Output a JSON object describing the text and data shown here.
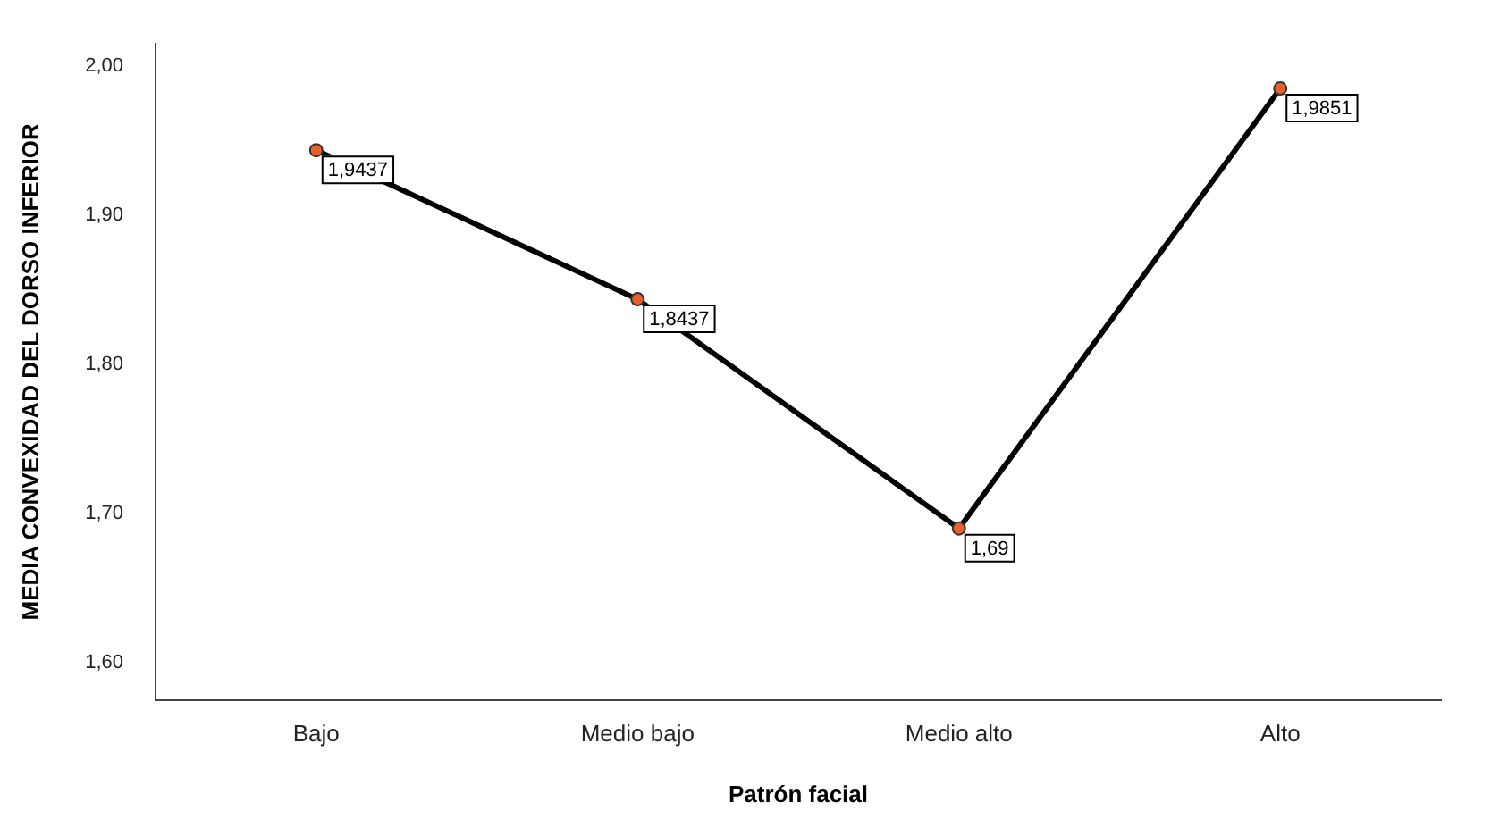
{
  "chart_data": {
    "type": "line",
    "xlabel": "Patrón facial",
    "ylabel": "MEDIA CONVEXIDAD DEL DORSO INFERIOR",
    "categories": [
      "Bajo",
      "Medio bajo",
      "Medio alto",
      "Alto"
    ],
    "series": [
      {
        "color": "#000000",
        "colors": [
          "#e8602c",
          "#e8602c",
          "#e8602c",
          "#e8602c"
        ],
        "values": [
          1.9437,
          1.8437,
          1.69,
          1.9851
        ],
        "value_labels": [
          "1,9437",
          "1,8437",
          "1,69",
          "1,9851"
        ]
      }
    ],
    "ylim": [
      1.575,
      2.015
    ],
    "yticks": [
      {
        "value": 1.6,
        "label": "1,60"
      },
      {
        "value": 1.7,
        "label": "1,70"
      },
      {
        "value": 1.8,
        "label": "1,80"
      },
      {
        "value": 1.9,
        "label": "1,90"
      },
      {
        "value": 2.0,
        "label": "2,00"
      }
    ],
    "grid": false,
    "legend": false,
    "marker": "circle",
    "line_style": "solid"
  }
}
